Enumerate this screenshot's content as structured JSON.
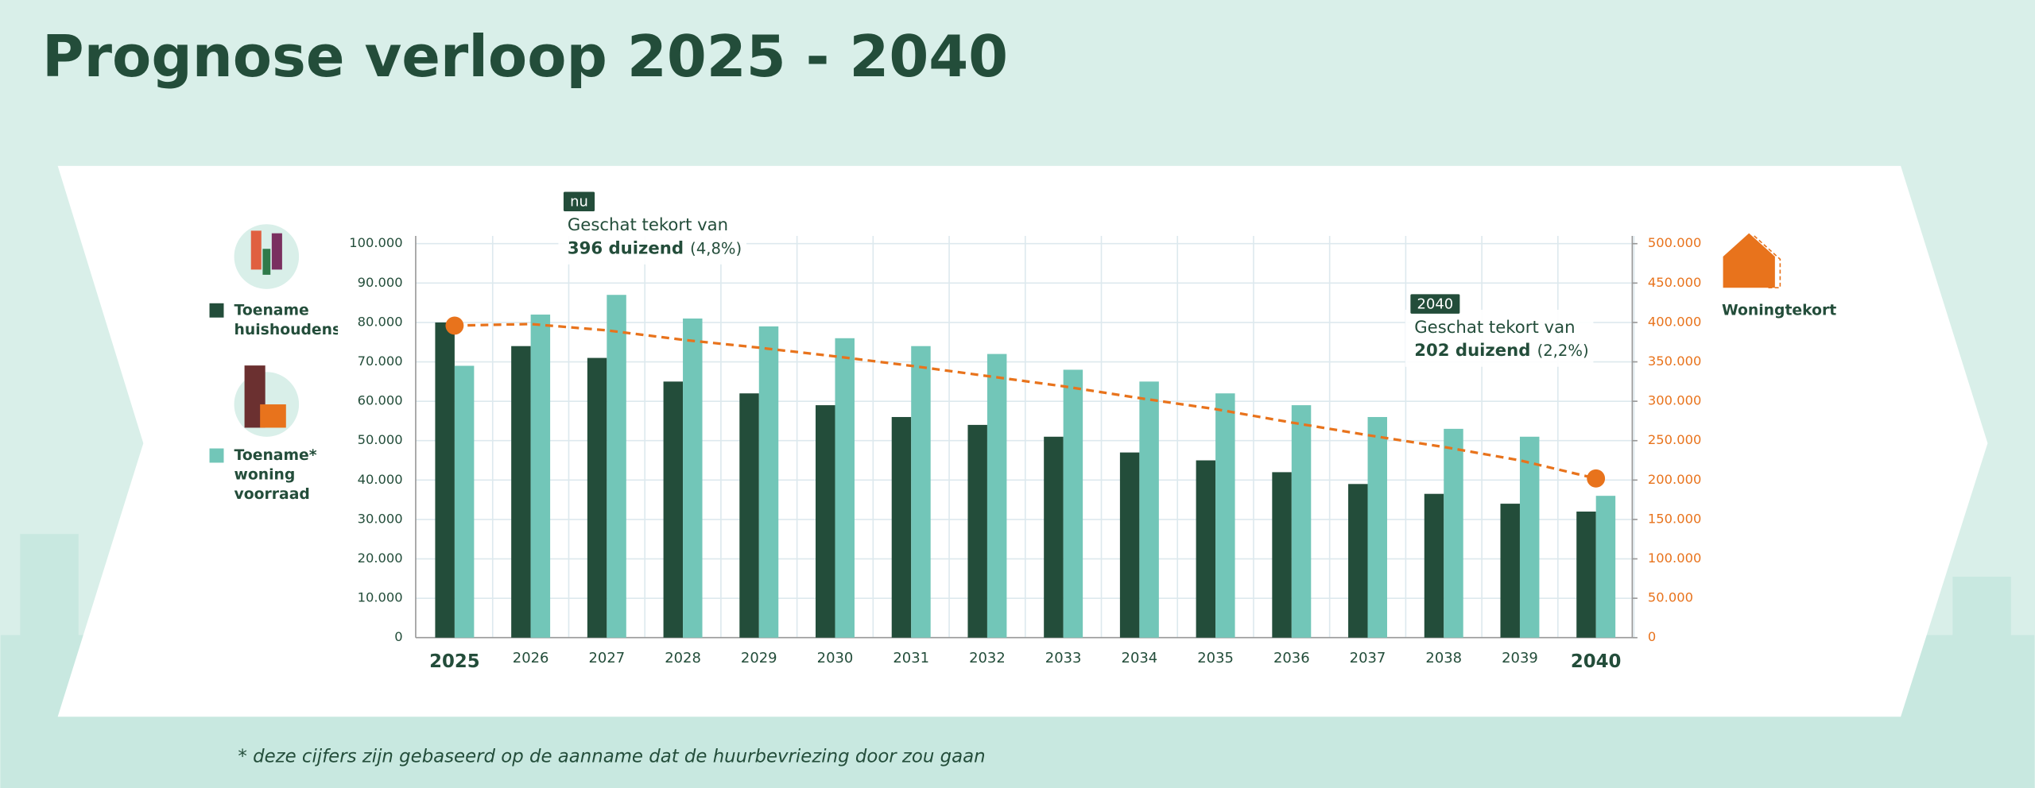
{
  "chart_data": {
    "type": "bar",
    "title": "Prognose verloop 2025 - 2040",
    "footnote": "* deze cijfers zijn gebaseerd op de aanname dat de huurbevriezing door zou gaan",
    "categories": [
      "2025",
      "2026",
      "2027",
      "2028",
      "2029",
      "2030",
      "2031",
      "2032",
      "2033",
      "2034",
      "2035",
      "2036",
      "2037",
      "2038",
      "2039",
      "2040"
    ],
    "series": [
      {
        "name": "Toename huishoudens",
        "color": "#234d3a",
        "values": [
          80000,
          74000,
          71000,
          65000,
          62000,
          59000,
          56000,
          54000,
          51000,
          47000,
          45000,
          42000,
          39000,
          36500,
          34000,
          32000
        ]
      },
      {
        "name": "Toename* woning voorraad",
        "color": "#72c6b8",
        "values": [
          69000,
          82000,
          87000,
          81000,
          79000,
          76000,
          74000,
          72000,
          68000,
          65000,
          62000,
          59000,
          56000,
          53000,
          51000,
          36000
        ]
      },
      {
        "name": "Woningtekort",
        "color": "#e8731c",
        "type": "line",
        "axis": "y2",
        "values": [
          396000,
          398000,
          390000,
          378000,
          368000,
          357000,
          345000,
          332000,
          319000,
          304000,
          290000,
          273000,
          257000,
          242000,
          225000,
          202000
        ]
      }
    ],
    "ylim": [
      0,
      100000
    ],
    "yticks": [
      0,
      {
        "value": 10000,
        "label": "10.000"
      },
      {
        "value": 20000,
        "label": "20.000"
      },
      {
        "value": 30000,
        "label": "30.000"
      },
      {
        "value": 40000,
        "label": "40.000"
      },
      {
        "value": 50000,
        "label": "50.000"
      },
      {
        "value": 60000,
        "label": "60.000"
      },
      {
        "value": 70000,
        "label": "70.000"
      },
      {
        "value": 80000,
        "label": "80.000"
      },
      {
        "value": 90000,
        "label": "90.000"
      },
      {
        "value": 100000,
        "label": "100.000"
      }
    ],
    "y2lim": [
      0,
      500000
    ],
    "y2ticks": [
      0,
      {
        "value": 50000,
        "label": "50.000"
      },
      {
        "value": 100000,
        "label": "100.000"
      },
      {
        "value": 150000,
        "label": "150.000"
      },
      {
        "value": 200000,
        "label": "200.000"
      },
      {
        "value": 250000,
        "label": "250.000"
      },
      {
        "value": 300000,
        "label": "300.000"
      },
      {
        "value": 350000,
        "label": "350.000"
      },
      {
        "value": 400000,
        "label": "400.000"
      },
      {
        "value": 450000,
        "label": "450.000"
      },
      {
        "value": 500000,
        "label": "500.000"
      }
    ],
    "grid": true,
    "annotations": [
      {
        "tag": "nu",
        "text": "Geschat tekort van",
        "amount": "396 duizend",
        "share": "(4,8%)"
      },
      {
        "tag": "2040",
        "text": "Geschat tekort van",
        "amount": "202 duizend",
        "share": "(2,2%)"
      }
    ]
  }
}
